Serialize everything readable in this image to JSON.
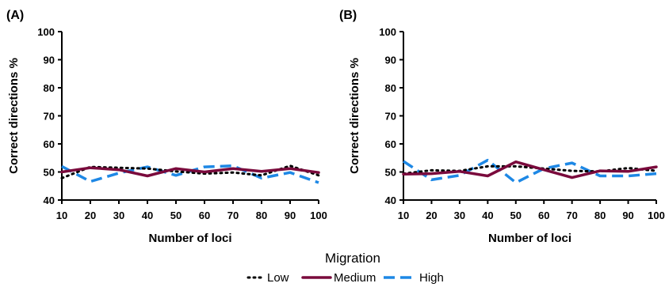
{
  "legend": {
    "title": "Migration",
    "items": [
      {
        "label": "Low",
        "color": "#000000",
        "style": "dotted"
      },
      {
        "label": "Medium",
        "color": "#7a0a3c",
        "style": "solid"
      },
      {
        "label": "High",
        "color": "#1e88e5",
        "style": "dashed"
      }
    ],
    "placement": "bottom-center"
  },
  "chart_data": [
    {
      "type": "line",
      "panel": "(A)",
      "xlabel": "Number of loci",
      "ylabel": "Correct directions %",
      "xlim": [
        10,
        100
      ],
      "ylim": [
        40,
        100
      ],
      "xticks": [
        10,
        20,
        30,
        40,
        50,
        60,
        70,
        80,
        90,
        100
      ],
      "yticks": [
        40,
        50,
        60,
        70,
        80,
        90,
        100
      ],
      "grid": false,
      "x": [
        10,
        20,
        30,
        40,
        50,
        60,
        70,
        80,
        90,
        100
      ],
      "series": [
        {
          "name": "Low",
          "values": [
            47.8,
            51.8,
            51.5,
            51.2,
            50.2,
            49.4,
            49.8,
            48.8,
            52.2,
            48.8
          ]
        },
        {
          "name": "Medium",
          "values": [
            50.0,
            51.5,
            50.8,
            48.6,
            51.2,
            50.0,
            51.2,
            50.2,
            51.2,
            49.8
          ]
        },
        {
          "name": "High",
          "values": [
            52.0,
            46.6,
            49.6,
            51.8,
            48.8,
            51.8,
            52.2,
            47.8,
            49.8,
            46.2
          ]
        }
      ]
    },
    {
      "type": "line",
      "panel": "(B)",
      "xlabel": "Number of loci",
      "ylabel": "Correct directions %",
      "xlim": [
        10,
        100
      ],
      "ylim": [
        40,
        100
      ],
      "xticks": [
        10,
        20,
        30,
        40,
        50,
        60,
        70,
        80,
        90,
        100
      ],
      "yticks": [
        40,
        50,
        60,
        70,
        80,
        90,
        100
      ],
      "grid": false,
      "x": [
        10,
        20,
        30,
        40,
        50,
        60,
        70,
        80,
        90,
        100
      ],
      "series": [
        {
          "name": "Low",
          "values": [
            49.4,
            50.6,
            50.4,
            52.0,
            52.0,
            51.2,
            50.4,
            50.2,
            51.4,
            50.4
          ]
        },
        {
          "name": "Medium",
          "values": [
            49.2,
            49.4,
            50.2,
            48.6,
            53.6,
            50.8,
            48.0,
            50.4,
            50.2,
            51.8
          ]
        },
        {
          "name": "High",
          "values": [
            53.8,
            47.2,
            48.8,
            54.2,
            46.2,
            51.2,
            53.2,
            48.6,
            48.6,
            49.4
          ]
        }
      ]
    }
  ]
}
